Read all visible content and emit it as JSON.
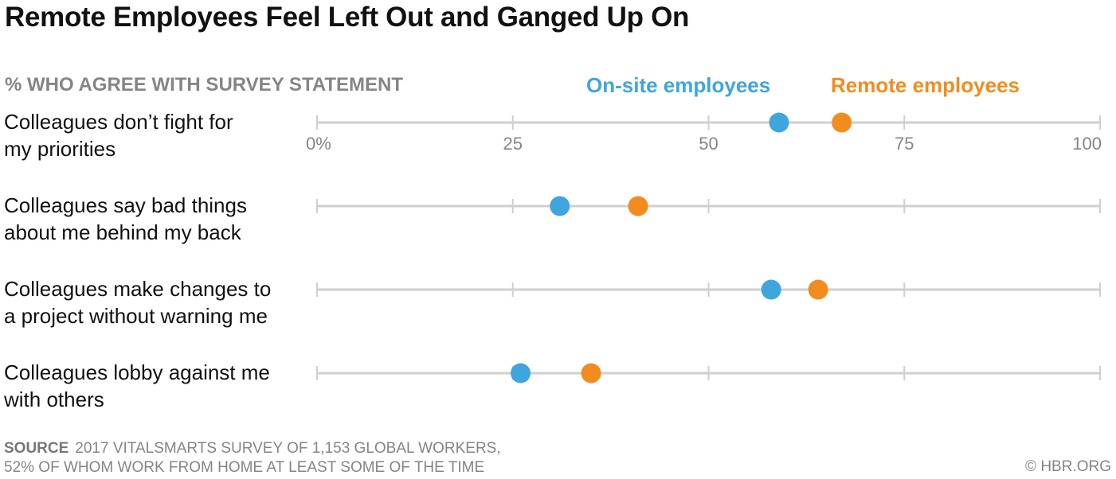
{
  "chart_data": {
    "type": "dot",
    "title": "Remote Employees Feel Left Out and Ganged Up On",
    "subtitle": "% WHO AGREE WITH SURVEY STATEMENT",
    "categories": [
      "Colleagues don’t fight for\nmy priorities",
      "Colleagues say bad things\nabout me behind my back",
      "Colleagues make changes to\na project without warning me",
      "Colleagues lobby against me\nwith others"
    ],
    "series": [
      {
        "name": "On-site employees",
        "color": "#3fa5df",
        "values": [
          59,
          31,
          58,
          26
        ]
      },
      {
        "name": "Remote employees",
        "color": "#f28c1f",
        "values": [
          67,
          41,
          64,
          35
        ]
      }
    ],
    "xlim": [
      0,
      100
    ],
    "xticks": [
      {
        "value": 0,
        "label": "0%"
      },
      25,
      50,
      75,
      100
    ],
    "source_label": "SOURCE",
    "source": "2017 VITALSMARTS SURVEY OF 1,153 GLOBAL WORKERS,\n52% OF WHOM WORK FROM HOME AT LEAST SOME OF THE TIME",
    "credit": "© HBR.ORG"
  }
}
